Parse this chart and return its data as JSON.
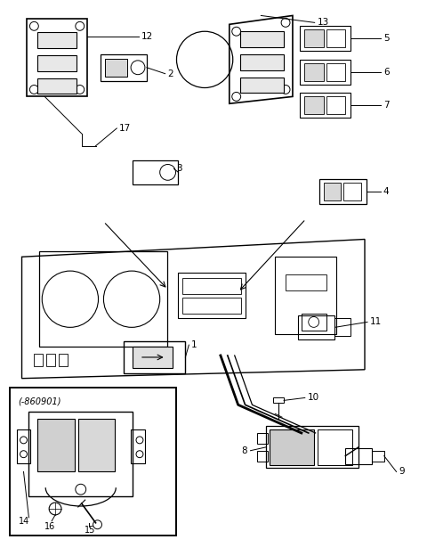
{
  "background_color": "#ffffff",
  "fig_width": 4.8,
  "fig_height": 6.24,
  "dpi": 100
}
